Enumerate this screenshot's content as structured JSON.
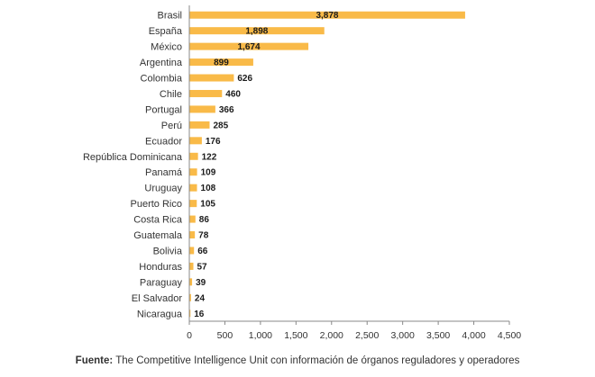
{
  "chart_data": {
    "type": "bar",
    "orientation": "horizontal",
    "categories": [
      "Brasil",
      "España",
      "México",
      "Argentina",
      "Colombia",
      "Chile",
      "Portugal",
      "Perú",
      "Ecuador",
      "República Dominicana",
      "Panamá",
      "Uruguay",
      "Puerto Rico",
      "Costa Rica",
      "Guatemala",
      "Bolivia",
      "Honduras",
      "Paraguay",
      "El Salvador",
      "Nicaragua"
    ],
    "values": [
      3878,
      1898,
      1674,
      899,
      626,
      460,
      366,
      285,
      176,
      122,
      109,
      108,
      105,
      86,
      78,
      66,
      57,
      39,
      24,
      16
    ],
    "value_labels": [
      "3,878",
      "1,898",
      "1,674",
      "899",
      "626",
      "460",
      "366",
      "285",
      "176",
      "122",
      "109",
      "108",
      "105",
      "86",
      "78",
      "66",
      "57",
      "39",
      "24",
      "16"
    ],
    "xlim": [
      0,
      4500
    ],
    "xticks": [
      0,
      500,
      1000,
      1500,
      2000,
      2500,
      3000,
      3500,
      4000,
      4500
    ],
    "xtick_labels": [
      "0",
      "500",
      "1,000",
      "1,500",
      "2,000",
      "2,500",
      "3,000",
      "3,500",
      "4,000",
      "4,500"
    ],
    "grid": false,
    "bar_color": "#F9BA48"
  },
  "source": {
    "label": "Fuente:",
    "text": "The Competitive Intelligence Unit con información de órganos reguladores y operadores"
  }
}
